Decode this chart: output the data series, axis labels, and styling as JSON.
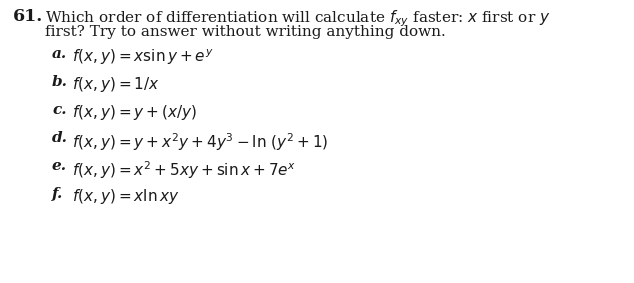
{
  "background_color": "#ffffff",
  "fig_width": 6.34,
  "fig_height": 2.83,
  "dpi": 100,
  "number": "\\textbf{61.}",
  "header_line1": "Which order of differentiation will calculate $f_{xy}$ faster: $x$ first or $y$",
  "header_line2": "first? Try to answer without writing anything down.",
  "items": [
    {
      "label": "a.",
      "formula": "$f(x, y) = x \\sin y + e^{y}$"
    },
    {
      "label": "b.",
      "formula": "$f(x, y) = 1/x$"
    },
    {
      "label": "c.",
      "formula": "$f(x, y) = y + (x/y)$"
    },
    {
      "label": "d.",
      "formula": "$f(x, y) = y + x^{2}y + 4y^{3} - \\ln\\,(y^{2} + 1)$"
    },
    {
      "label": "e.",
      "formula": "$f(x, y) = x^{2} + 5xy + \\sin x + 7e^{x}$"
    },
    {
      "label": "f.",
      "formula": "$f(x, y) = x \\ln xy$"
    }
  ],
  "header_fontsize": 11.0,
  "number_fontsize": 12.5,
  "item_fontsize": 11.0,
  "label_fontsize": 11.0,
  "text_color": "#1a1a1a"
}
